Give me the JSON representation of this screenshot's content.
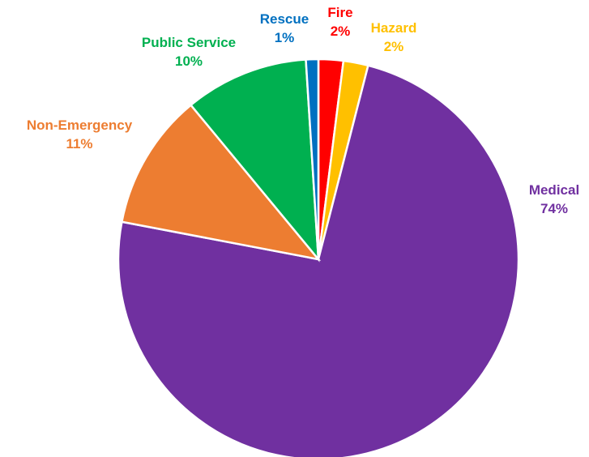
{
  "chart_data": {
    "type": "pie",
    "start_angle_deg": 0,
    "direction": "clockwise",
    "slices": [
      {
        "label": "Fire",
        "value": 2,
        "display": "2%",
        "color": "#FF0000"
      },
      {
        "label": "Hazard",
        "value": 2,
        "display": "2%",
        "color": "#FFC000"
      },
      {
        "label": "Medical",
        "value": 74,
        "display": "74%",
        "color": "#7030A0"
      },
      {
        "label": "Non-Emergency",
        "value": 11,
        "display": "11%",
        "color": "#ED7D31"
      },
      {
        "label": "Public Service",
        "value": 10,
        "display": "10%",
        "color": "#00B050"
      },
      {
        "label": "Rescue",
        "value": 1,
        "display": "1%",
        "color": "#0070C0"
      }
    ]
  }
}
